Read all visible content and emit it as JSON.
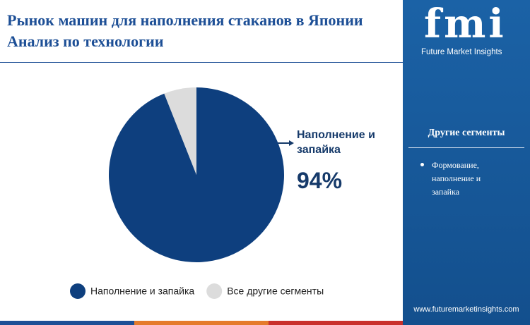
{
  "chart_data": {
    "type": "pie",
    "title": "Рынок машин для наполнения стаканов в Японии Анализ по технологии",
    "categories": [
      "Наполнение и запайка",
      "Все другие сегменты"
    ],
    "values": [
      94,
      6
    ],
    "value_labels": [
      "94%",
      null
    ],
    "colors": [
      "#0e3f7e",
      "#dcdcdc"
    ],
    "legend": "bottom"
  },
  "sidebar": {
    "logo": "fmi",
    "tagline": "Future Market Insights",
    "heading": "Другие сегменты",
    "items": [
      "Формование, наполнение и запайка"
    ],
    "url": "www.futuremarketinsights.com"
  }
}
